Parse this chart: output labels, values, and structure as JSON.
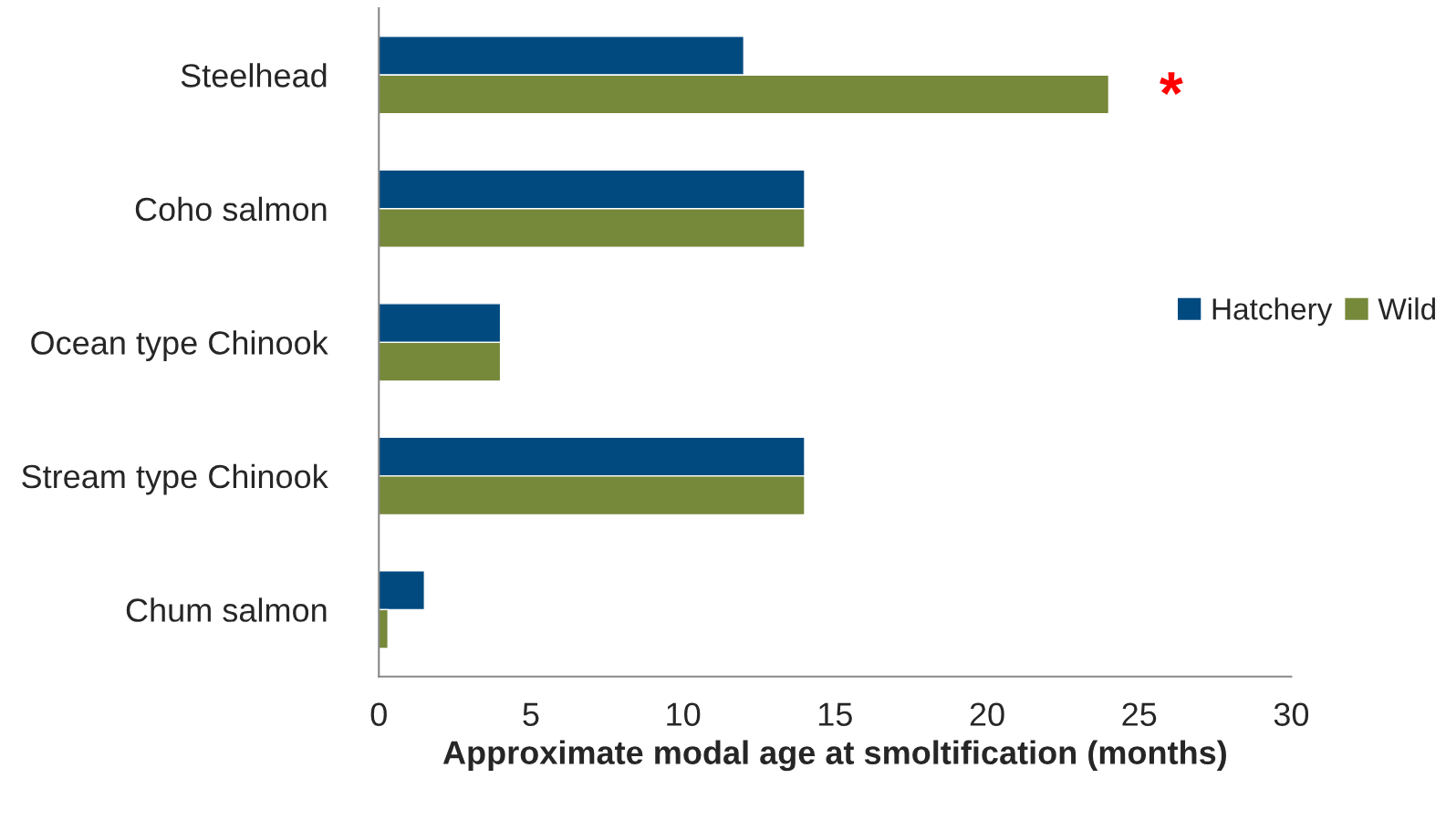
{
  "chart_data": {
    "type": "bar",
    "orientation": "horizontal",
    "xlabel": "Approximate modal age at smoltification (months)",
    "categories": [
      "Steelhead",
      "Coho salmon",
      "Ocean type Chinook",
      "Stream type Chinook",
      "Chum salmon"
    ],
    "series": [
      {
        "name": "Hatchery",
        "color": "#004a80",
        "values": [
          12,
          14,
          4,
          14,
          1.5
        ]
      },
      {
        "name": "Wild",
        "color": "#76883a",
        "values": [
          24,
          14,
          4,
          14,
          0.3
        ]
      }
    ],
    "xlim": [
      0,
      30
    ],
    "xticks": [
      0,
      5,
      10,
      15,
      20,
      25,
      30
    ],
    "annotations": [
      "*"
    ],
    "grid": false,
    "legend": "right"
  }
}
